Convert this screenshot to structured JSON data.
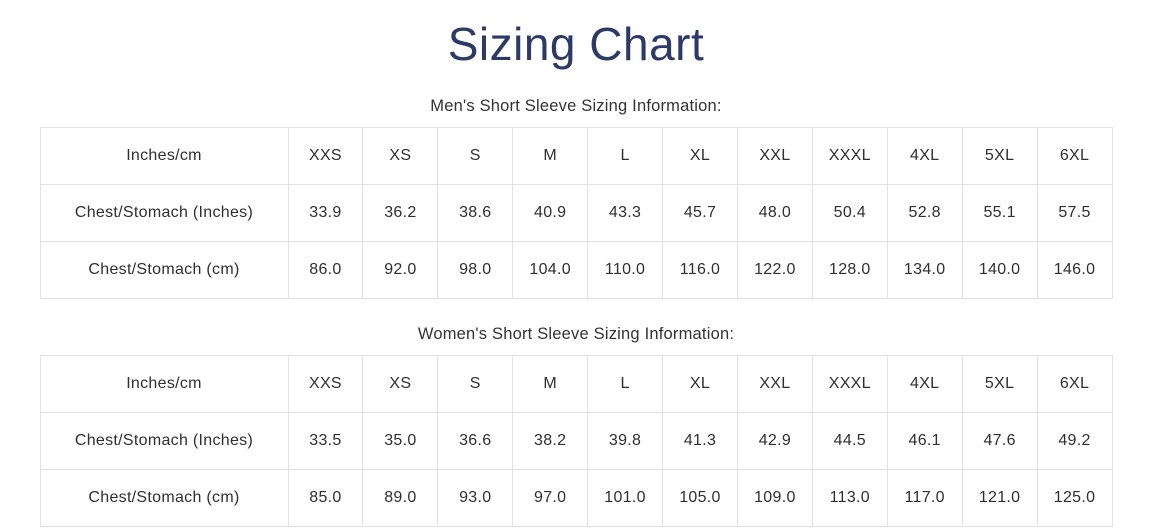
{
  "page": {
    "title": "Sizing Chart"
  },
  "colors": {
    "title": "#2b3a66",
    "body_text": "#2f2f2f",
    "border": "#e2e2e2",
    "background": "#ffffff"
  },
  "sections": [
    {
      "id": "mens",
      "heading": "Men's Short Sleeve Sizing Information:",
      "columns": [
        "Inches/cm",
        "XXS",
        "XS",
        "S",
        "M",
        "L",
        "XL",
        "XXL",
        "XXXL",
        "4XL",
        "5XL",
        "6XL"
      ],
      "rows": [
        {
          "label": "Chest/Stomach (Inches)",
          "values": [
            "33.9",
            "36.2",
            "38.6",
            "40.9",
            "43.3",
            "45.7",
            "48.0",
            "50.4",
            "52.8",
            "55.1",
            "57.5"
          ]
        },
        {
          "label": "Chest/Stomach (cm)",
          "values": [
            "86.0",
            "92.0",
            "98.0",
            "104.0",
            "110.0",
            "116.0",
            "122.0",
            "128.0",
            "134.0",
            "140.0",
            "146.0"
          ]
        }
      ]
    },
    {
      "id": "womens",
      "heading": "Women's Short Sleeve Sizing Information:",
      "columns": [
        "Inches/cm",
        "XXS",
        "XS",
        "S",
        "M",
        "L",
        "XL",
        "XXL",
        "XXXL",
        "4XL",
        "5XL",
        "6XL"
      ],
      "rows": [
        {
          "label": "Chest/Stomach (Inches)",
          "values": [
            "33.5",
            "35.0",
            "36.6",
            "38.2",
            "39.8",
            "41.3",
            "42.9",
            "44.5",
            "46.1",
            "47.6",
            "49.2"
          ]
        },
        {
          "label": "Chest/Stomach (cm)",
          "values": [
            "85.0",
            "89.0",
            "93.0",
            "97.0",
            "101.0",
            "105.0",
            "109.0",
            "113.0",
            "117.0",
            "121.0",
            "125.0"
          ]
        }
      ]
    }
  ]
}
